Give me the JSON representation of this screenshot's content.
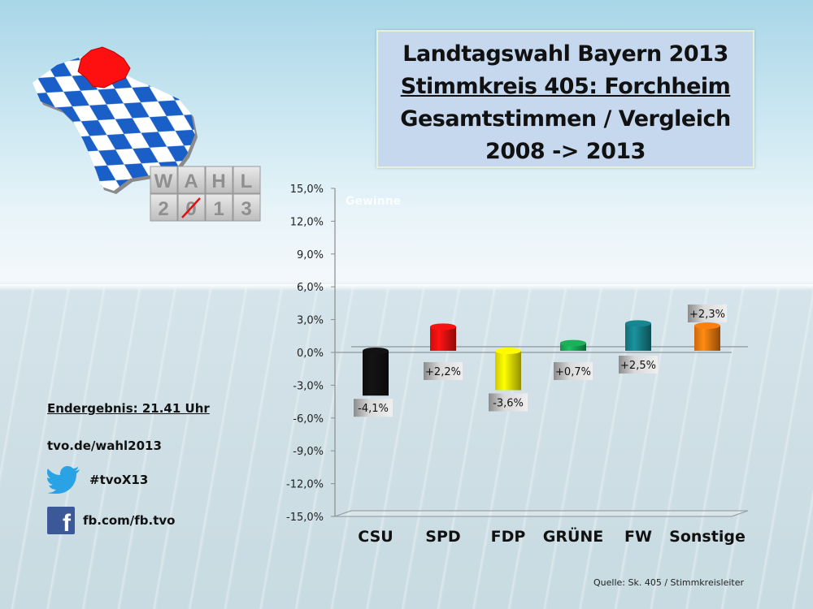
{
  "title": {
    "lines": [
      "Landtagswahl Bayern 2013",
      "Stimmkreis 405: Forchheim",
      "Gesamtstimmen / Vergleich",
      "2008 -> 2013"
    ]
  },
  "logo": {
    "cube_letters_top": [
      "W",
      "A",
      "H",
      "L"
    ],
    "cube_letters_bottom": [
      "2",
      "0",
      "1",
      "3"
    ],
    "colors": {
      "bavaria_blue": "#1a5fc8",
      "region_red": "#ff1010"
    }
  },
  "side_info": {
    "final_result": "Endergebnis: 21.41 Uhr",
    "url": "tvo.de/wahl2013",
    "twitter_icon": "twitter-bird-icon",
    "twitter": "#tvoX13",
    "facebook_icon": "facebook-icon",
    "facebook": "fb.com/fb.tvo"
  },
  "source": "Quelle: Sk. 405 / Stimmkreisleiter",
  "chart_data": {
    "type": "bar",
    "title": "Landtagswahl Bayern 2013 – Stimmkreis 405: Forchheim – Gesamtstimmen / Vergleich 2008 -> 2013",
    "xlabel": "",
    "ylabel": "",
    "ylim": [
      -15.0,
      15.0
    ],
    "yticks": [
      15.0,
      12.0,
      9.0,
      6.0,
      3.0,
      0.0,
      -3.0,
      -6.0,
      -9.0,
      -12.0,
      -15.0
    ],
    "ytick_labels": [
      "15,0%",
      "12,0%",
      "9,0%",
      "6,0%",
      "3,0%",
      "0,0%",
      "-3,0%",
      "-6,0%",
      "-9,0%",
      "-12,0%",
      "-15,0%"
    ],
    "categories": [
      "CSU",
      "SPD",
      "FDP",
      "GRÜNE",
      "FW",
      "Sonstige"
    ],
    "values": [
      -4.1,
      2.2,
      -3.6,
      0.7,
      2.5,
      2.3
    ],
    "data_labels": [
      "-4,1%",
      "+2,2%",
      "-3,6%",
      "+0,7%",
      "+2,5%",
      "+2,3%"
    ],
    "colors": [
      "#111111",
      "#ee1111",
      "#f2ee00",
      "#1aa856",
      "#17808a",
      "#f07a10"
    ],
    "faint_label": "Gewinne",
    "grid": false,
    "legend": "none",
    "style": "3d-cylinder"
  }
}
